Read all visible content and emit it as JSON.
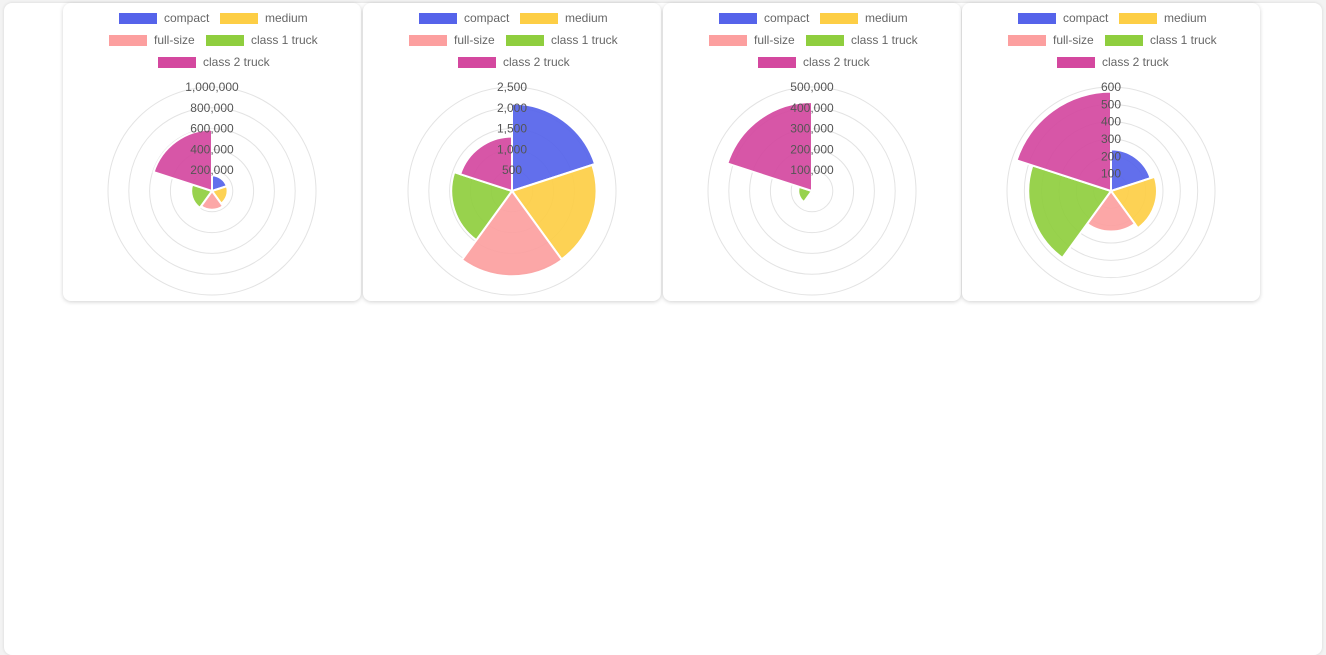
{
  "colors": {
    "compact": "#5563ea",
    "medium": "#fdce45",
    "full-size": "#fc9f9f",
    "class 1 truck": "#8fce3e",
    "class 2 truck": "#d4489f"
  },
  "chart_data": [
    {
      "type": "polarArea",
      "categories": [
        "compact",
        "medium",
        "full-size",
        "class 1 truck",
        "class 2 truck"
      ],
      "values": [
        150000,
        150000,
        180000,
        200000,
        590000
      ],
      "rmax": 1000000,
      "ticks": [
        "1,000,000",
        "800,000",
        "600,000",
        "400,000",
        "200,000"
      ],
      "tick_values": [
        1000000,
        800000,
        600000,
        400000,
        200000
      ],
      "legend_position": "top"
    },
    {
      "type": "polarArea",
      "categories": [
        "compact",
        "medium",
        "full-size",
        "class 1 truck",
        "class 2 truck"
      ],
      "values": [
        2100,
        2030,
        2050,
        1460,
        1310
      ],
      "rmax": 2500,
      "ticks": [
        "2,500",
        "2,000",
        "1,500",
        "1,000",
        "500"
      ],
      "tick_values": [
        2500,
        2000,
        1500,
        1000,
        500
      ],
      "legend_position": "top"
    },
    {
      "type": "polarArea",
      "categories": [
        "compact",
        "medium",
        "full-size",
        "class 1 truck",
        "class 2 truck"
      ],
      "values": [
        8000,
        14000,
        12000,
        66000,
        428000
      ],
      "rmax": 500000,
      "ticks": [
        "500,000",
        "400,000",
        "300,000",
        "200,000",
        "100,000"
      ],
      "tick_values": [
        500000,
        400000,
        300000,
        200000,
        100000
      ],
      "legend_position": "top"
    },
    {
      "type": "polarArea",
      "categories": [
        "compact",
        "medium",
        "full-size",
        "class 1 truck",
        "class 2 truck"
      ],
      "values": [
        240,
        265,
        234,
        477,
        573
      ],
      "rmax": 600,
      "ticks": [
        "600",
        "500",
        "400",
        "300",
        "200",
        "100"
      ],
      "tick_values": [
        600,
        500,
        400,
        300,
        200,
        100
      ],
      "legend_position": "top"
    }
  ]
}
